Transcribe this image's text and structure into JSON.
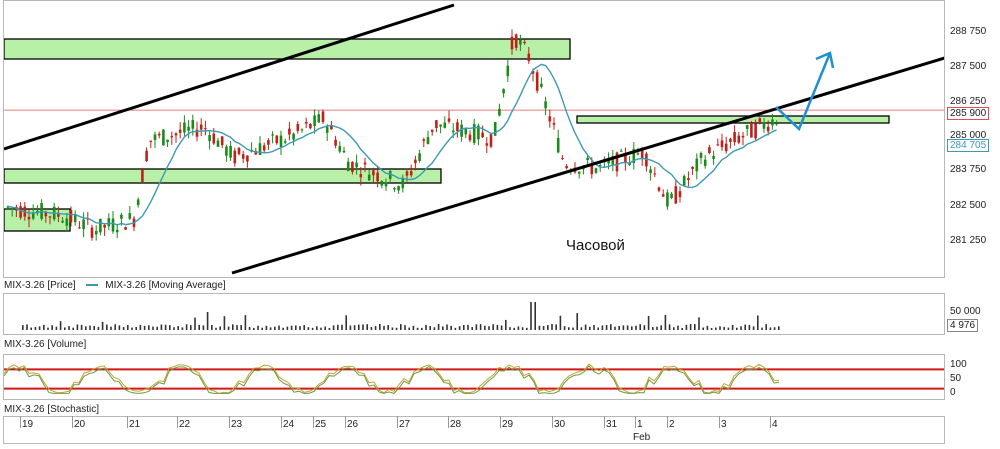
{
  "chart_data": {
    "type": "candlestick",
    "annotation_text": "Часовой",
    "price_ticks": [
      "288 750",
      "287 500",
      "286 250",
      "285 000",
      "283 750",
      "282 500",
      "281 250"
    ],
    "current_price_label": "285 900",
    "ma_price_label": "284 705",
    "legend": {
      "price": "MIX-3.26 [Price]",
      "ma": "MIX-3.26 [Moving Average]"
    },
    "volume_ticks": [
      "50 000"
    ],
    "volume_last_label": "4 976",
    "volume_title": "MIX-3.26 [Volume]",
    "stoch_ticks": [
      "100",
      "50",
      "0"
    ],
    "stoch_title": "MIX-3.26 [Stochastic]",
    "x_labels": [
      "19",
      "20",
      "21",
      "22",
      "23",
      "24",
      "25",
      "26",
      "27",
      "28",
      "29",
      "30",
      "31",
      "1",
      "2",
      "3",
      "4"
    ],
    "month_label": "Feb",
    "colors": {
      "up": "#1a8a1a",
      "down": "#c0201a",
      "ma": "#3b9ab5",
      "zone": "#b8f0a8",
      "trend": "#000000",
      "forecast": "#1e90d0",
      "level": "#e05050"
    }
  }
}
